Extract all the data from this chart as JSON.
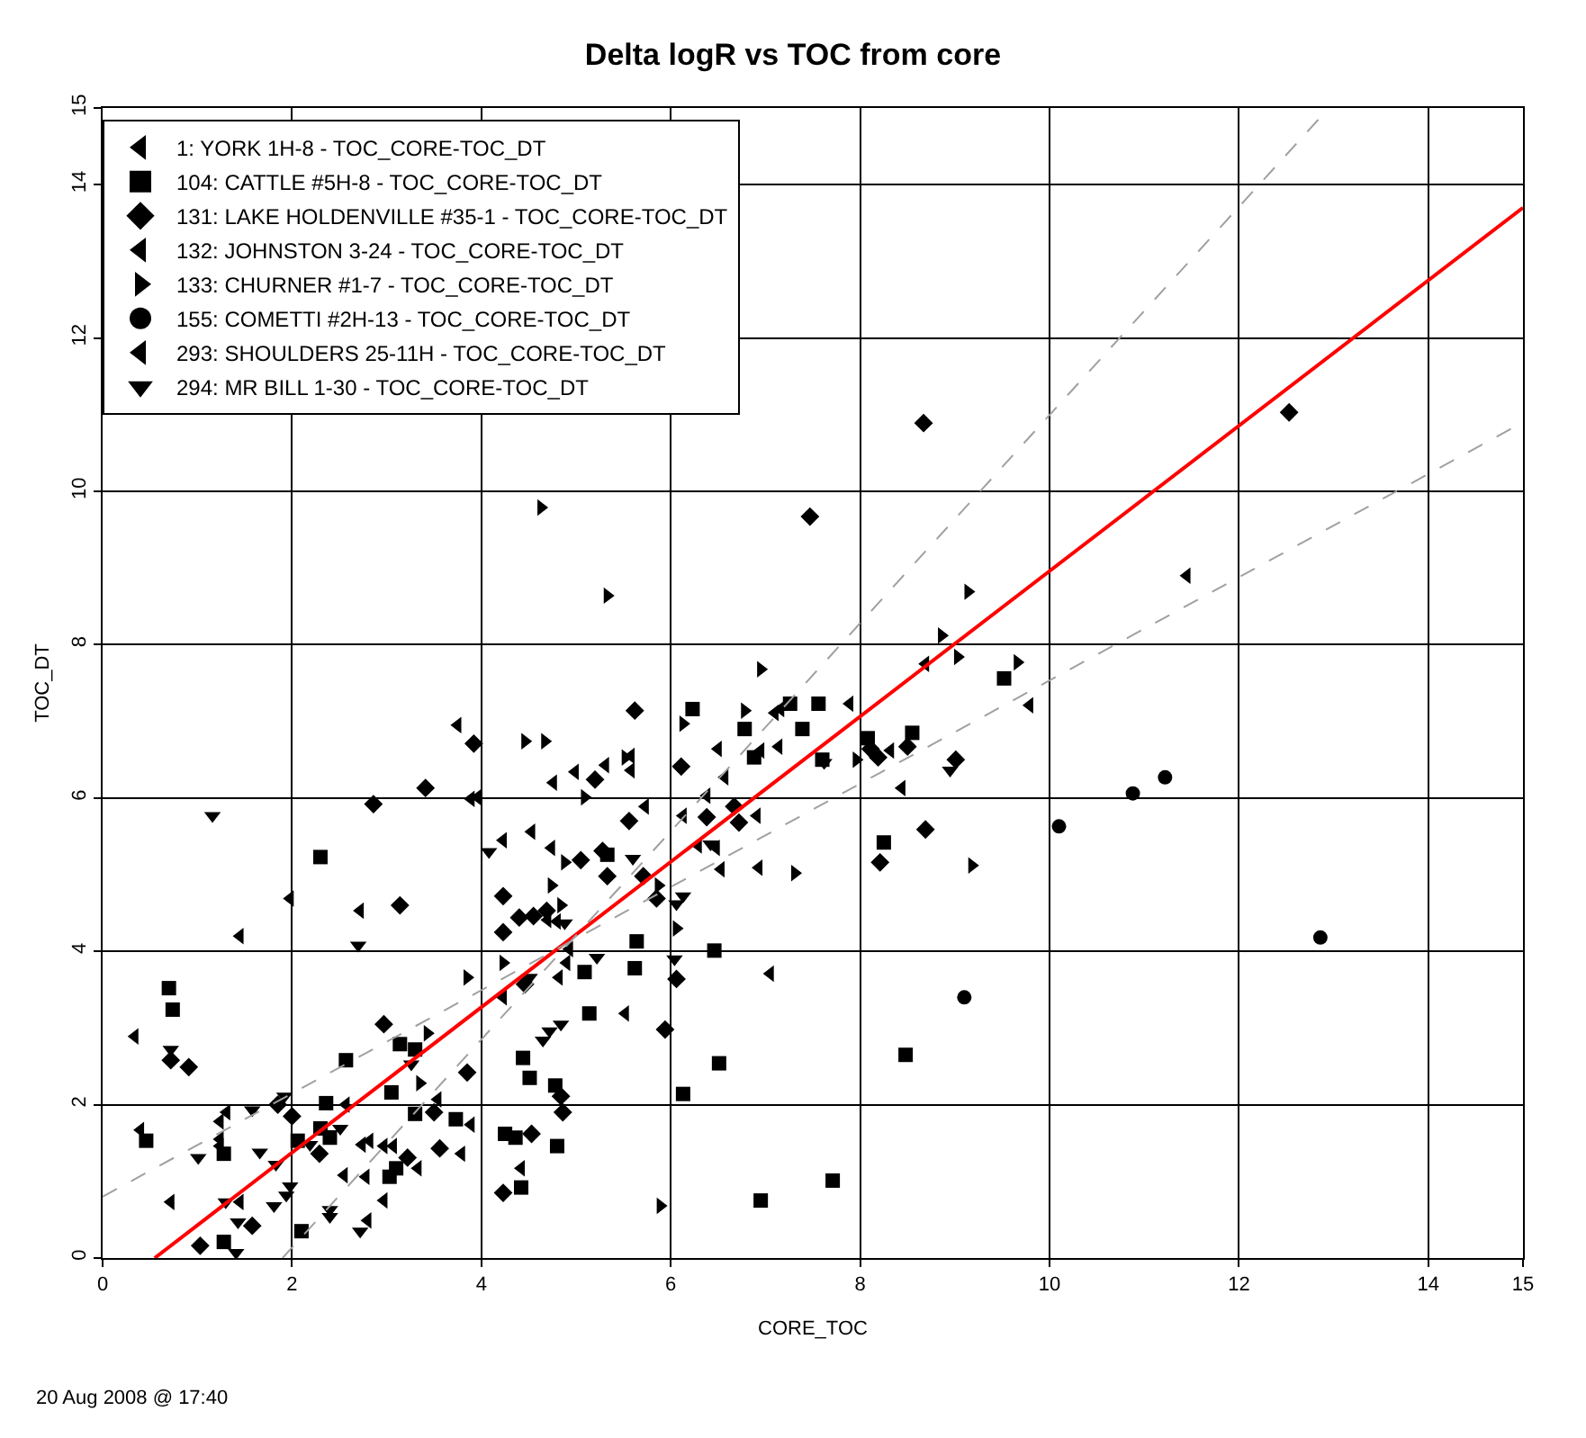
{
  "chart_data": {
    "type": "scatter",
    "title": "Delta logR vs TOC from core",
    "xlabel": "CORE_TOC",
    "ylabel": "TOC_DT",
    "xlim": [
      0,
      15
    ],
    "ylim": [
      0,
      15
    ],
    "xticks": [
      0,
      2,
      4,
      6,
      8,
      10,
      12,
      14,
      15
    ],
    "yticks": [
      0,
      2,
      4,
      6,
      8,
      10,
      12,
      14,
      15
    ],
    "grid": true,
    "legend": "top left",
    "annotations": [
      "20 Aug 2008 @ 17:40"
    ],
    "series": [
      {
        "name": "1: YORK 1H-8 - TOC_CORE-TOC_DT",
        "color": "#000000",
        "marker": "triangle-left",
        "x": [
          3.75,
          3.89,
          3.96,
          1.98,
          2.72,
          1.45,
          0.34,
          3.54,
          2.57,
          1.31,
          1.24,
          3.89,
          0.4,
          1.24,
          1.24,
          2.74,
          2.82,
          2.97,
          3.07,
          3.79,
          3.33
        ],
        "values": [
          6.95,
          5.99,
          6.01,
          4.69,
          4.53,
          4.2,
          2.89,
          2.07,
          2.0,
          1.9,
          1.78,
          1.74,
          1.67,
          1.55,
          1.46,
          1.48,
          1.53,
          1.46,
          1.46,
          1.36,
          1.17
        ]
      },
      {
        "name": "104: CATTLE #5H-8 - TOC_CORE-TOC_DT",
        "color": "#000000",
        "marker": "square",
        "x": [
          2.3,
          0.7,
          0.74,
          3.14,
          3.3,
          2.57,
          3.05,
          2.36,
          3.3,
          3.73,
          0.46,
          2.3,
          2.06,
          2.4,
          1.28,
          3.03,
          3.1,
          2.1,
          1.28,
          6.78,
          6.88,
          5.33,
          5.64,
          6.46,
          5.09,
          5.62,
          5.14,
          4.44,
          4.51,
          4.78,
          6.51,
          6.13,
          4.25,
          4.36,
          4.8,
          4.42,
          7.26,
          7.56,
          7.39,
          7.6,
          8.08,
          8.55,
          9.52,
          8.25,
          8.48,
          7.71,
          6.95,
          6.23
        ],
        "values": [
          5.23,
          3.52,
          3.24,
          2.79,
          2.72,
          2.58,
          2.16,
          2.02,
          1.88,
          1.81,
          1.53,
          1.69,
          1.53,
          1.57,
          1.36,
          1.06,
          1.17,
          0.35,
          0.21,
          6.9,
          6.53,
          5.26,
          4.13,
          4.01,
          3.73,
          3.78,
          3.19,
          2.61,
          2.35,
          2.25,
          2.54,
          2.14,
          1.62,
          1.57,
          1.46,
          0.92,
          7.23,
          7.23,
          6.9,
          6.5,
          6.78,
          6.85,
          7.56,
          5.42,
          2.65,
          1.01,
          0.75,
          7.16
        ]
      },
      {
        "name": "131: LAKE HOLDENVILLE #35-1 - TOC_CORE-TOC_DT",
        "color": "#000000",
        "marker": "diamond",
        "x": [
          3.92,
          3.41,
          2.86,
          3.14,
          0.72,
          0.91,
          2.97,
          3.85,
          1.85,
          2.0,
          3.5,
          2.29,
          3.22,
          3.56,
          1.58,
          1.03,
          5.2,
          6.11,
          5.56,
          6.38,
          5.28,
          5.05,
          6.67,
          6.72,
          5.33,
          5.71,
          4.23,
          5.85,
          4.4,
          4.55,
          4.69,
          4.23,
          6.06,
          4.46,
          5.94,
          4.84,
          4.86,
          4.53,
          4.23,
          7.47,
          8.11,
          8.19,
          8.5,
          9.01,
          8.69,
          8.21,
          5.62,
          12.53,
          8.67
        ],
        "values": [
          6.71,
          6.13,
          5.92,
          4.6,
          2.58,
          2.49,
          3.05,
          2.42,
          2.0,
          1.85,
          1.9,
          1.36,
          1.31,
          1.43,
          0.42,
          0.16,
          6.24,
          6.41,
          5.7,
          5.75,
          5.31,
          5.19,
          5.89,
          5.68,
          4.98,
          4.98,
          4.72,
          4.69,
          4.44,
          4.46,
          4.53,
          4.25,
          3.64,
          3.57,
          2.98,
          2.11,
          1.9,
          1.62,
          0.85,
          9.67,
          6.64,
          6.53,
          6.67,
          6.5,
          5.59,
          5.16,
          7.14,
          11.03,
          10.89
        ]
      },
      {
        "name": "132: JOHNSTON 3-24 - TOC_CORE-TOC_DT",
        "color": "#000000",
        "marker": "triangle-left",
        "x": [
          2.55,
          2.78,
          0.72,
          1.45,
          2.97,
          2.8,
          6.5,
          4.99,
          5.31,
          5.58,
          5.58,
          4.76,
          6.57,
          6.38,
          5.73,
          6.13,
          4.53,
          4.23,
          4.74,
          6.29,
          6.48
        ],
        "values": [
          1.08,
          1.06,
          0.73,
          0.73,
          0.75,
          0.49,
          6.64,
          6.34,
          6.43,
          6.55,
          6.36,
          6.2,
          6.27,
          6.03,
          5.89,
          5.77,
          5.56,
          5.45,
          5.35,
          5.38,
          5.35
        ]
      },
      {
        "name": "133: CHURNER #1-7 - TOC_CORE-TOC_DT",
        "color": "#000000",
        "marker": "triangle-right",
        "x": [
          3.85,
          3.43,
          3.35,
          4.46,
          4.67,
          6.13,
          5.52,
          5.09,
          4.88,
          4.74,
          5.87,
          4.84,
          6.06,
          4.23,
          5.89,
          9.14,
          8.86,
          9.03,
          9.66,
          6.95,
          6.78,
          7.96,
          9.18,
          7.31,
          4.63,
          5.33
        ],
        "values": [
          3.66,
          2.93,
          2.28,
          6.74,
          6.74,
          6.97,
          6.53,
          6.01,
          5.16,
          4.86,
          4.86,
          4.6,
          4.3,
          3.85,
          0.68,
          8.69,
          8.12,
          7.84,
          7.77,
          7.68,
          7.14,
          6.5,
          5.12,
          5.02,
          9.79,
          8.64
        ]
      },
      {
        "name": "155: COMETTI #2H-13 - TOC_CORE-TOC_DT",
        "color": "#000000",
        "marker": "circle",
        "x": [
          10.88,
          11.22,
          10.1,
          12.86,
          9.1
        ],
        "values": [
          6.06,
          6.27,
          5.63,
          4.18,
          3.4
        ]
      },
      {
        "name": "293: SHOULDERS 25-11H - TOC_CORE-TOC_DT",
        "color": "#000000",
        "marker": "triangle-left",
        "x": [
          6.53,
          4.7,
          4.8,
          4.93,
          4.9,
          4.82,
          4.23,
          5.52,
          4.42,
          8.69,
          9.79,
          7.1,
          7.16,
          7.89,
          6.95,
          7.14,
          8.32,
          8.44,
          6.91,
          6.93,
          7.05,
          11.45
        ],
        "values": [
          5.07,
          4.41,
          4.39,
          4.03,
          3.85,
          3.66,
          3.4,
          3.19,
          1.17,
          7.75,
          7.21,
          7.11,
          7.16,
          7.23,
          6.62,
          6.67,
          6.62,
          6.13,
          5.77,
          5.09,
          3.71,
          8.9
        ]
      },
      {
        "name": "294: MR BILL 1-30 - TOC_CORE-TOC_DT",
        "color": "#000000",
        "marker": "triangle-down",
        "x": [
          1.16,
          4.08,
          2.7,
          0.72,
          3.26,
          1.92,
          1.58,
          2.4,
          2.51,
          2.19,
          1.01,
          1.66,
          1.83,
          1.3,
          1.98,
          1.94,
          1.81,
          2.4,
          2.4,
          2.72,
          1.43,
          1.41,
          5.6,
          6.42,
          6.06,
          6.13,
          4.88,
          5.22,
          6.04,
          4.51,
          4.84,
          4.72,
          4.65,
          7.62,
          8.95
        ],
        "values": [
          5.77,
          5.3,
          4.08,
          2.72,
          2.53,
          2.11,
          1.93,
          1.62,
          1.69,
          1.48,
          1.31,
          1.38,
          1.22,
          0.73,
          0.94,
          0.82,
          0.68,
          0.63,
          0.54,
          0.35,
          0.47,
          0.07,
          5.21,
          5.4,
          4.62,
          4.72,
          4.37,
          3.92,
          3.9,
          3.66,
          3.05,
          2.96,
          2.84,
          6.46,
          6.36
        ]
      },
      {
        "type": "line",
        "color": "#ff0000",
        "line_style": "solid",
        "x": [
          0.55,
          15
        ],
        "values": [
          0,
          13.7
        ]
      },
      {
        "type": "line",
        "color": "#a0a0a0",
        "line_style": "dashed",
        "x": [
          0,
          15
        ],
        "values": [
          0.8,
          10.9
        ]
      },
      {
        "type": "line",
        "color": "#a0a0a0",
        "line_style": "dashed",
        "x": [
          1.9,
          12.95
        ],
        "values": [
          0,
          15
        ]
      }
    ]
  }
}
